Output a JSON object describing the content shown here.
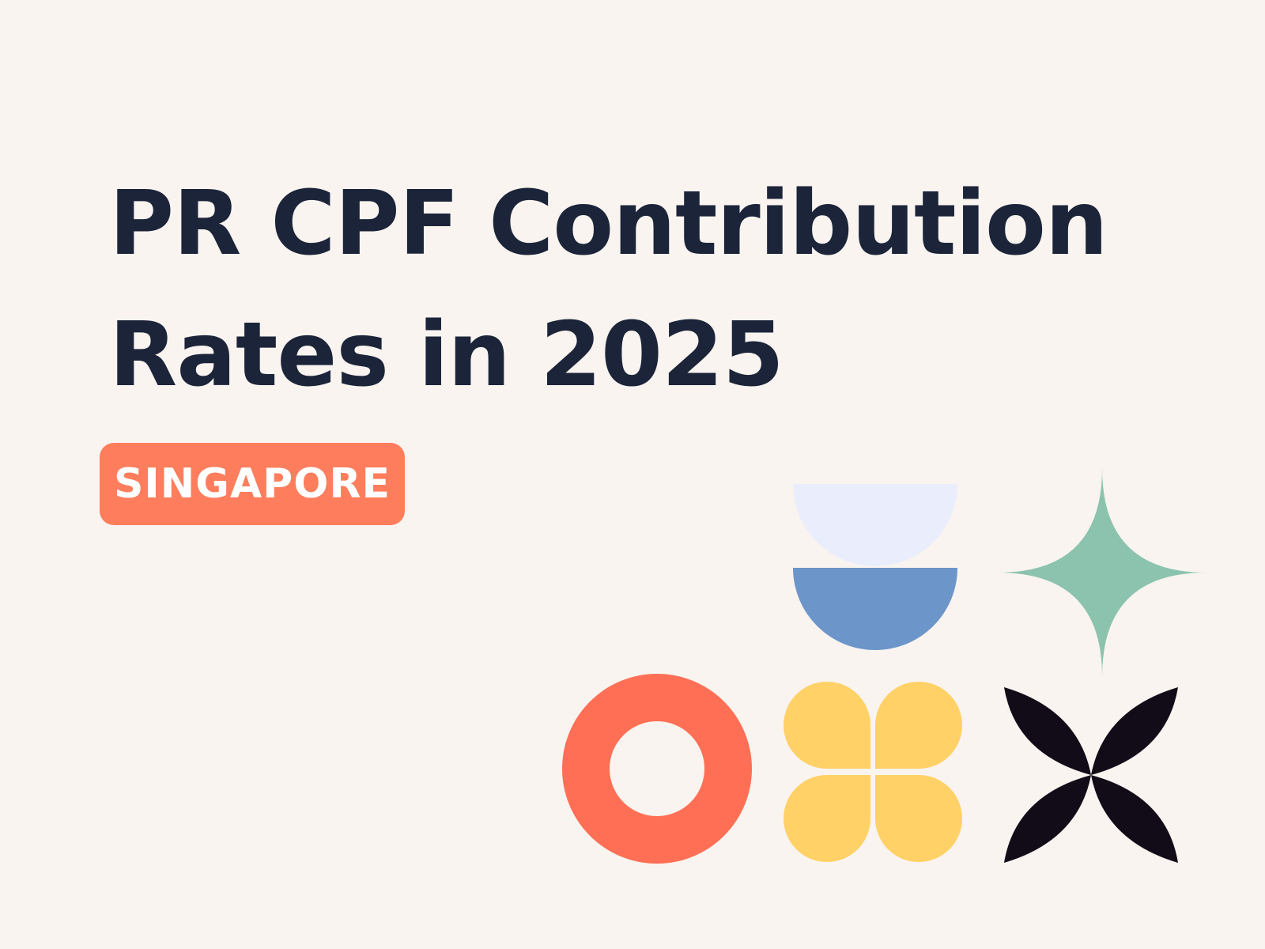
{
  "title": {
    "line1": "PR CPF Contribution",
    "line2": "Rates in 2025"
  },
  "badge": {
    "label": "SINGAPORE"
  },
  "colors": {
    "background": "#f9f4f0",
    "title": "#1c2439",
    "badge": "#fe7d5c",
    "ring": "#ff6f55",
    "lavender": "#eaedfb",
    "blue": "#6c95c9",
    "green": "#8bc3ae",
    "yellow": "#ffd166",
    "black": "#110c17"
  },
  "decorations": [
    "bowl-shape",
    "sparkle-star-shape",
    "ring-shape",
    "clover-shape",
    "petal-cross-shape"
  ]
}
